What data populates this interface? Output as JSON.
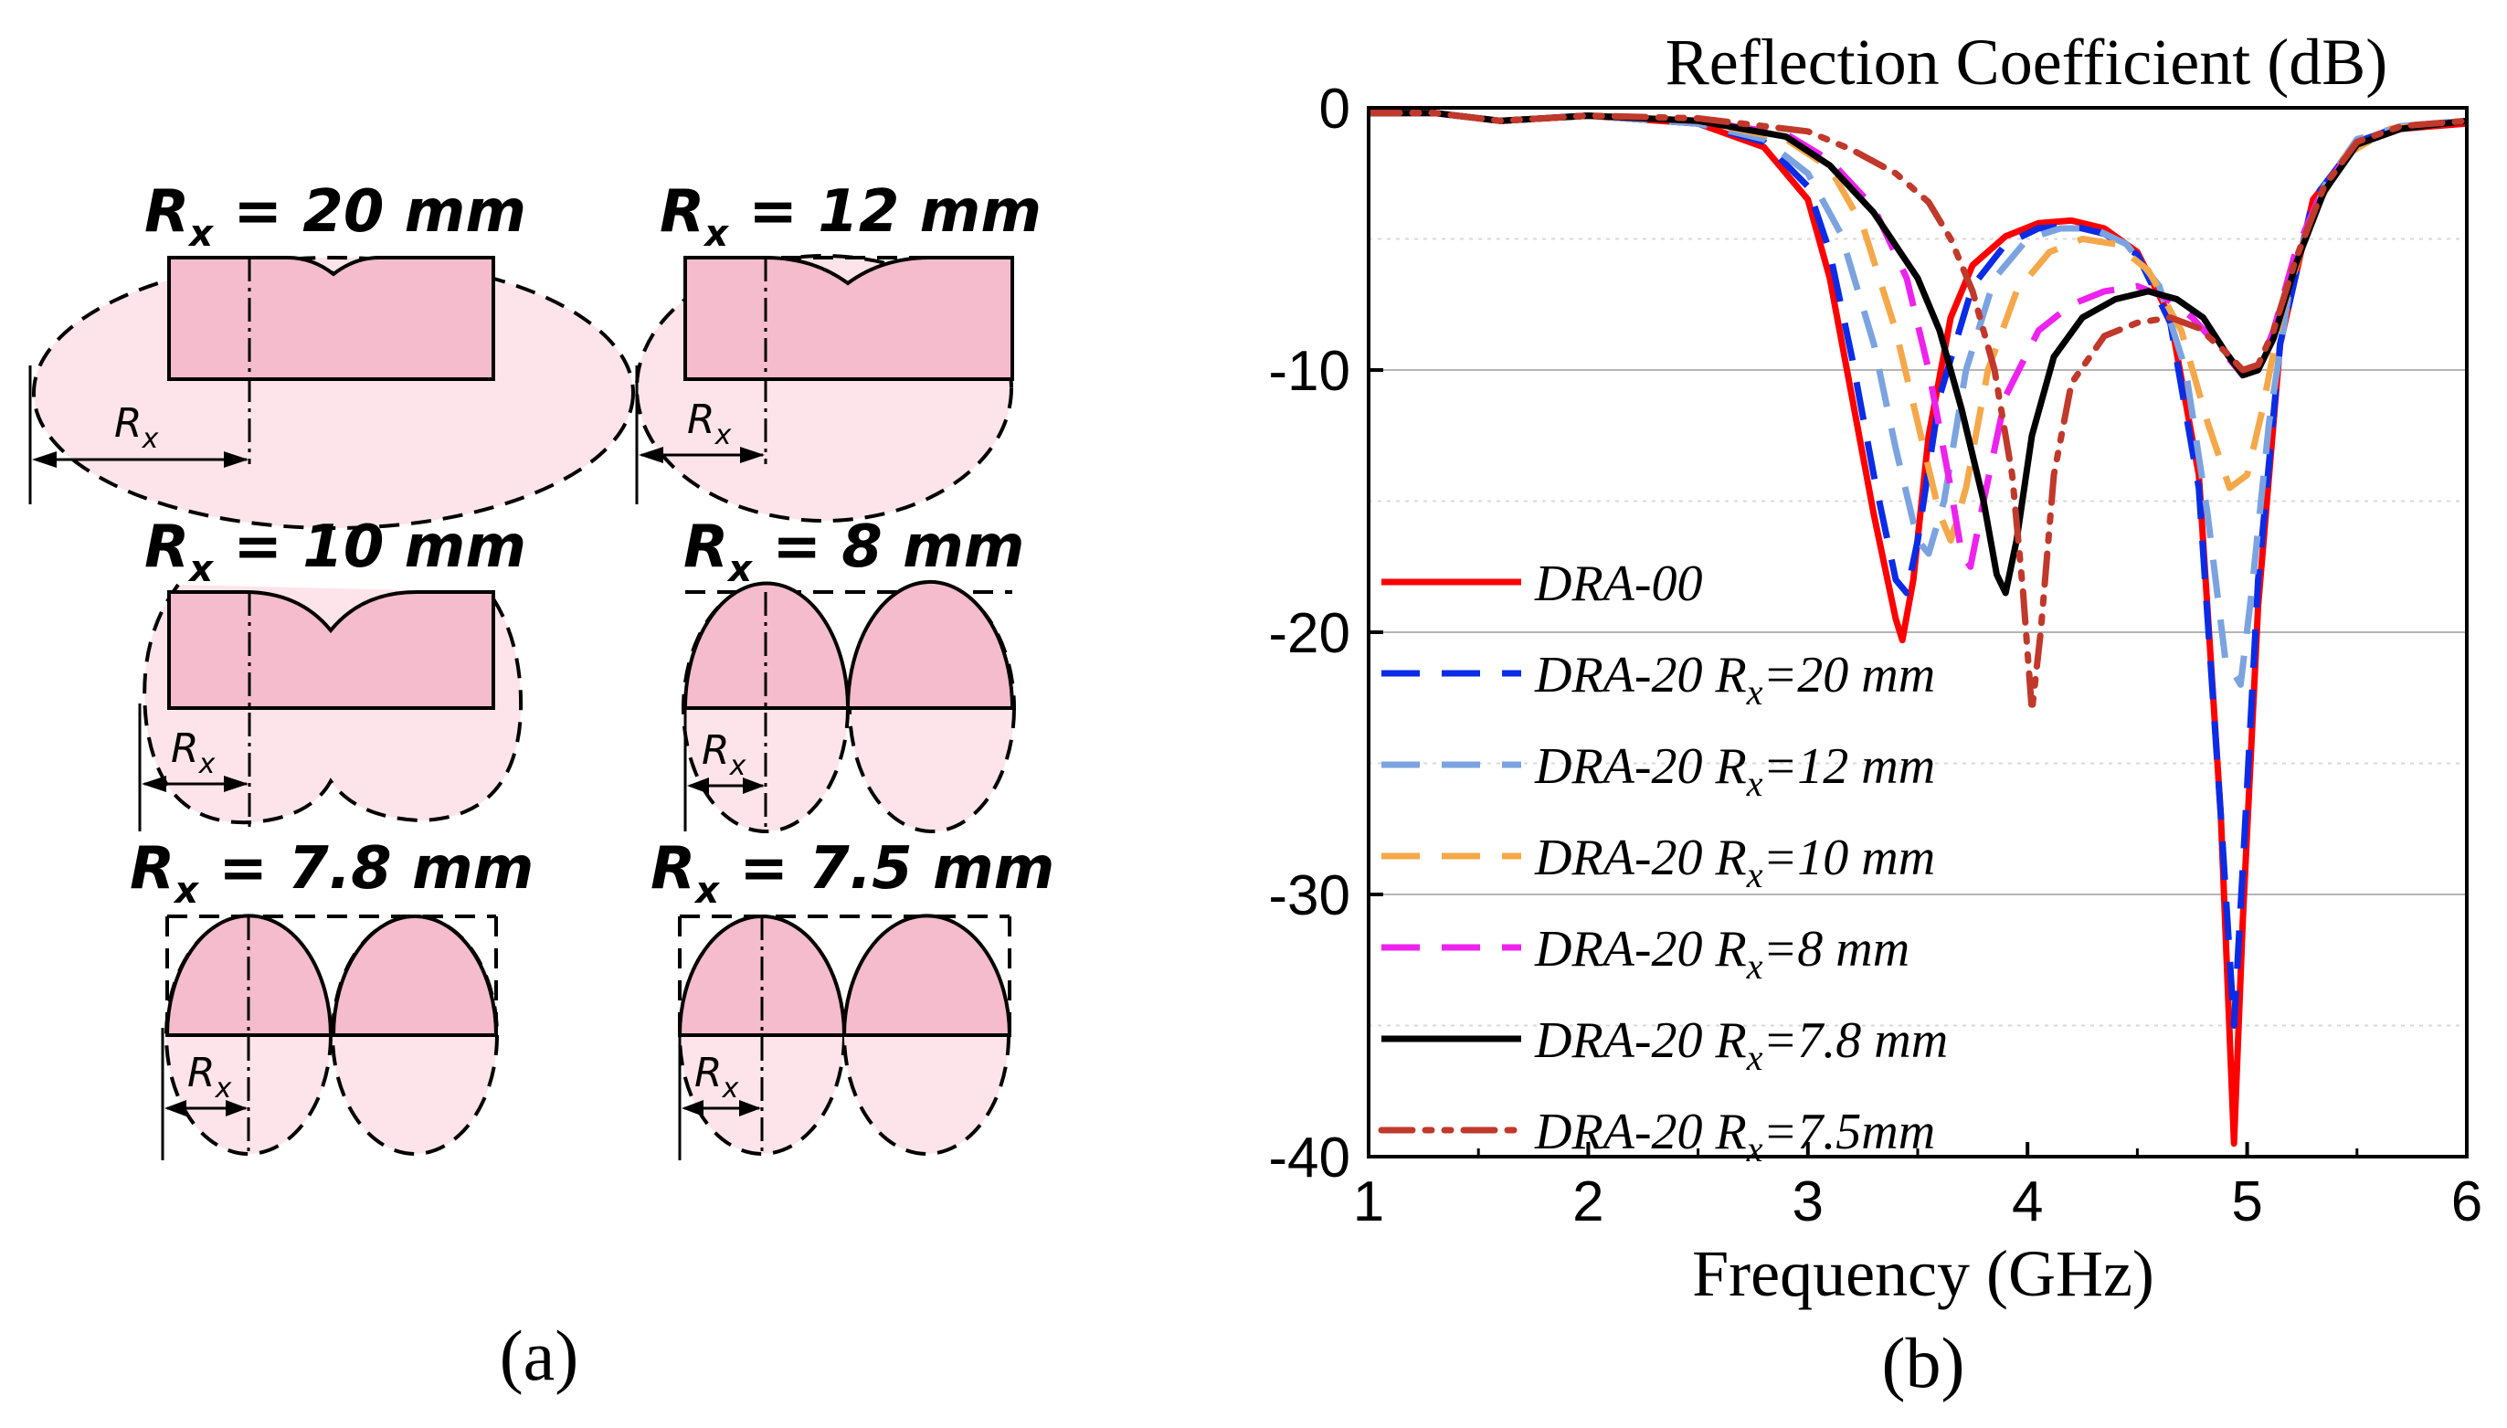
{
  "panel_a": {
    "caption": "(a)",
    "shapes": [
      {
        "title": "R",
        "sub": "x",
        "rest": " = 20 mm",
        "rx_label": "R",
        "rx_sub": "x"
      },
      {
        "title": "R",
        "sub": "x",
        "rest": " = 12 mm",
        "rx_label": "R",
        "rx_sub": "x"
      },
      {
        "title": "R",
        "sub": "x",
        "rest": " = 10 mm",
        "rx_label": "R",
        "rx_sub": "x"
      },
      {
        "title": "R",
        "sub": "x",
        "rest": " = 8 mm",
        "rx_label": "R",
        "rx_sub": "x"
      },
      {
        "title": "R",
        "sub": "x",
        "rest": " = 7.8 mm",
        "rx_label": "R",
        "rx_sub": "x"
      },
      {
        "title": "R",
        "sub": "x",
        "rest": " = 7.5 mm",
        "rx_label": "R",
        "rx_sub": "x"
      }
    ],
    "colors": {
      "fill_light": "#fde4ea",
      "fill_dark": "#f4bccc",
      "stroke": "#000000"
    }
  },
  "panel_b": {
    "caption": "(b)"
  },
  "chart_data": {
    "type": "line",
    "title": "Reflection Coefficient (dB)",
    "xlabel": "Frequency (GHz)",
    "ylabel": "",
    "xlim": [
      1,
      6
    ],
    "ylim": [
      -40,
      0
    ],
    "xticks": [
      "1",
      "2",
      "3",
      "4",
      "5",
      "6"
    ],
    "yticks": [
      "0",
      "-10",
      "-20",
      "-30",
      "-40"
    ],
    "grid": "horizontal",
    "legend_position": "left",
    "series": [
      {
        "name": "DRA-00",
        "name_main": "DRA-00",
        "name_sub": "",
        "name_tail": "",
        "color": "#ff0000",
        "dash": "solid",
        "points": [
          [
            1,
            -0.2
          ],
          [
            1.3,
            -0.2
          ],
          [
            1.6,
            -0.5
          ],
          [
            2,
            -0.3
          ],
          [
            2.5,
            -0.6
          ],
          [
            2.8,
            -1.5
          ],
          [
            3,
            -3.5
          ],
          [
            3.1,
            -6.5
          ],
          [
            3.2,
            -11
          ],
          [
            3.3,
            -15.5
          ],
          [
            3.4,
            -19.5
          ],
          [
            3.43,
            -20.3
          ],
          [
            3.48,
            -18
          ],
          [
            3.55,
            -12.5
          ],
          [
            3.65,
            -8
          ],
          [
            3.75,
            -6
          ],
          [
            3.9,
            -4.9
          ],
          [
            4.05,
            -4.4
          ],
          [
            4.2,
            -4.3
          ],
          [
            4.35,
            -4.6
          ],
          [
            4.5,
            -5.5
          ],
          [
            4.65,
            -8
          ],
          [
            4.78,
            -14
          ],
          [
            4.88,
            -27
          ],
          [
            4.94,
            -39.5
          ],
          [
            4.98,
            -31
          ],
          [
            5.05,
            -19
          ],
          [
            5.15,
            -9
          ],
          [
            5.3,
            -3.5
          ],
          [
            5.5,
            -1.4
          ],
          [
            5.7,
            -0.8
          ],
          [
            6,
            -0.6
          ]
        ]
      },
      {
        "name": "DRA-20 Rx=20 mm",
        "name_main": "DRA-20 R",
        "name_sub": "x",
        "name_tail": "=20 mm",
        "color": "#0a2ce6",
        "dash": "long-dash",
        "points": [
          [
            1,
            -0.2
          ],
          [
            1.3,
            -0.2
          ],
          [
            1.6,
            -0.5
          ],
          [
            2,
            -0.3
          ],
          [
            2.5,
            -0.6
          ],
          [
            2.8,
            -1.3
          ],
          [
            3,
            -3
          ],
          [
            3.1,
            -5.5
          ],
          [
            3.2,
            -9.5
          ],
          [
            3.3,
            -14
          ],
          [
            3.4,
            -18
          ],
          [
            3.45,
            -18.5
          ],
          [
            3.5,
            -16.5
          ],
          [
            3.6,
            -11
          ],
          [
            3.75,
            -6.8
          ],
          [
            3.9,
            -5.2
          ],
          [
            4.05,
            -4.6
          ],
          [
            4.2,
            -4.5
          ],
          [
            4.35,
            -4.8
          ],
          [
            4.5,
            -5.6
          ],
          [
            4.65,
            -8.2
          ],
          [
            4.78,
            -14.5
          ],
          [
            4.88,
            -27
          ],
          [
            4.94,
            -35
          ],
          [
            4.98,
            -29
          ],
          [
            5.05,
            -18
          ],
          [
            5.15,
            -9
          ],
          [
            5.3,
            -3.5
          ],
          [
            5.5,
            -1.3
          ],
          [
            5.7,
            -0.7
          ],
          [
            6,
            -0.5
          ]
        ]
      },
      {
        "name": "DRA-20 Rx=12 mm",
        "name_main": "DRA-20 R",
        "name_sub": "x",
        "name_tail": "=12 mm",
        "color": "#7ba3e0",
        "dash": "long-dash",
        "points": [
          [
            1,
            -0.2
          ],
          [
            1.3,
            -0.2
          ],
          [
            1.6,
            -0.5
          ],
          [
            2,
            -0.3
          ],
          [
            2.5,
            -0.6
          ],
          [
            2.8,
            -1.2
          ],
          [
            3,
            -2.5
          ],
          [
            3.15,
            -4.8
          ],
          [
            3.3,
            -9
          ],
          [
            3.4,
            -13
          ],
          [
            3.5,
            -16.5
          ],
          [
            3.55,
            -17
          ],
          [
            3.62,
            -15
          ],
          [
            3.72,
            -10
          ],
          [
            3.85,
            -6.5
          ],
          [
            4,
            -5
          ],
          [
            4.15,
            -4.6
          ],
          [
            4.3,
            -4.6
          ],
          [
            4.45,
            -5.2
          ],
          [
            4.6,
            -6.8
          ],
          [
            4.72,
            -10
          ],
          [
            4.82,
            -15.5
          ],
          [
            4.9,
            -21
          ],
          [
            4.97,
            -22
          ],
          [
            5.02,
            -18.5
          ],
          [
            5.1,
            -12
          ],
          [
            5.2,
            -6.5
          ],
          [
            5.35,
            -3
          ],
          [
            5.5,
            -1.2
          ],
          [
            5.7,
            -0.7
          ],
          [
            6,
            -0.5
          ]
        ]
      },
      {
        "name": "DRA-20 Rx=10 mm",
        "name_main": "DRA-20 R",
        "name_sub": "x",
        "name_tail": "=10 mm",
        "color": "#f5a84a",
        "dash": "long-dash",
        "points": [
          [
            1,
            -0.2
          ],
          [
            1.3,
            -0.2
          ],
          [
            1.6,
            -0.5
          ],
          [
            2,
            -0.3
          ],
          [
            2.5,
            -0.5
          ],
          [
            2.9,
            -1.2
          ],
          [
            3.1,
            -2.3
          ],
          [
            3.25,
            -4.5
          ],
          [
            3.4,
            -8.5
          ],
          [
            3.5,
            -12
          ],
          [
            3.6,
            -15.5
          ],
          [
            3.65,
            -16.5
          ],
          [
            3.72,
            -14.5
          ],
          [
            3.82,
            -10
          ],
          [
            3.95,
            -7
          ],
          [
            4.1,
            -5.5
          ],
          [
            4.25,
            -5
          ],
          [
            4.4,
            -5.2
          ],
          [
            4.55,
            -6.2
          ],
          [
            4.7,
            -8.5
          ],
          [
            4.82,
            -12
          ],
          [
            4.92,
            -14.5
          ],
          [
            5.0,
            -14
          ],
          [
            5.07,
            -11.5
          ],
          [
            5.15,
            -8
          ],
          [
            5.3,
            -4
          ],
          [
            5.45,
            -1.8
          ],
          [
            5.65,
            -0.8
          ],
          [
            6,
            -0.5
          ]
        ]
      },
      {
        "name": "DRA-20 Rx=8 mm",
        "name_main": "DRA-20 R",
        "name_sub": "x",
        "name_tail": "=8 mm",
        "color": "#ee22ee",
        "dash": "long-dash",
        "points": [
          [
            1,
            -0.2
          ],
          [
            1.3,
            -0.2
          ],
          [
            1.6,
            -0.5
          ],
          [
            2,
            -0.3
          ],
          [
            2.5,
            -0.5
          ],
          [
            2.9,
            -1
          ],
          [
            3.1,
            -2
          ],
          [
            3.3,
            -3.8
          ],
          [
            3.45,
            -6.5
          ],
          [
            3.55,
            -10
          ],
          [
            3.65,
            -14.5
          ],
          [
            3.7,
            -17
          ],
          [
            3.74,
            -17.5
          ],
          [
            3.8,
            -15
          ],
          [
            3.9,
            -11
          ],
          [
            4.05,
            -8.5
          ],
          [
            4.2,
            -7.5
          ],
          [
            4.35,
            -7
          ],
          [
            4.5,
            -6.8
          ],
          [
            4.62,
            -7.2
          ],
          [
            4.75,
            -8
          ],
          [
            4.88,
            -9.2
          ],
          [
            4.98,
            -10.2
          ],
          [
            5.05,
            -10
          ],
          [
            5.12,
            -8.5
          ],
          [
            5.22,
            -5.5
          ],
          [
            5.35,
            -3
          ],
          [
            5.5,
            -1.4
          ],
          [
            5.7,
            -0.8
          ],
          [
            6,
            -0.5
          ]
        ]
      },
      {
        "name": "DRA-20 Rx=7.8 mm",
        "name_main": "DRA-20 R",
        "name_sub": "x",
        "name_tail": "=7.8 mm",
        "color": "#000000",
        "dash": "solid",
        "points": [
          [
            1,
            -0.2
          ],
          [
            1.3,
            -0.2
          ],
          [
            1.6,
            -0.5
          ],
          [
            2,
            -0.3
          ],
          [
            2.5,
            -0.5
          ],
          [
            2.9,
            -1.1
          ],
          [
            3.1,
            -2.2
          ],
          [
            3.3,
            -4
          ],
          [
            3.5,
            -6.5
          ],
          [
            3.6,
            -8.5
          ],
          [
            3.7,
            -11.5
          ],
          [
            3.8,
            -15
          ],
          [
            3.86,
            -17.8
          ],
          [
            3.9,
            -18.5
          ],
          [
            3.95,
            -16.5
          ],
          [
            4.02,
            -12.5
          ],
          [
            4.12,
            -9.5
          ],
          [
            4.25,
            -8
          ],
          [
            4.4,
            -7.3
          ],
          [
            4.55,
            -7
          ],
          [
            4.68,
            -7.3
          ],
          [
            4.8,
            -8
          ],
          [
            4.9,
            -9.3
          ],
          [
            4.98,
            -10.2
          ],
          [
            5.05,
            -10
          ],
          [
            5.12,
            -8.8
          ],
          [
            5.22,
            -6
          ],
          [
            5.35,
            -3.2
          ],
          [
            5.5,
            -1.4
          ],
          [
            5.7,
            -0.8
          ],
          [
            6,
            -0.5
          ]
        ]
      },
      {
        "name": "DRA-20 Rx=7.5mm",
        "name_main": "DRA-20 R",
        "name_sub": "x",
        "name_tail": "=7.5mm",
        "color": "#c0392b",
        "dash": "dash-dot-dot",
        "points": [
          [
            1,
            -0.2
          ],
          [
            1.3,
            -0.2
          ],
          [
            1.6,
            -0.5
          ],
          [
            2,
            -0.3
          ],
          [
            2.5,
            -0.4
          ],
          [
            3,
            -0.9
          ],
          [
            3.2,
            -1.6
          ],
          [
            3.4,
            -2.5
          ],
          [
            3.55,
            -3.6
          ],
          [
            3.65,
            -5
          ],
          [
            3.75,
            -7
          ],
          [
            3.85,
            -10
          ],
          [
            3.93,
            -14
          ],
          [
            3.98,
            -18.5
          ],
          [
            4.02,
            -23
          ],
          [
            4.06,
            -20
          ],
          [
            4.12,
            -14
          ],
          [
            4.2,
            -10.5
          ],
          [
            4.35,
            -8.7
          ],
          [
            4.5,
            -8.2
          ],
          [
            4.65,
            -8
          ],
          [
            4.78,
            -8.4
          ],
          [
            4.9,
            -9.3
          ],
          [
            4.98,
            -10
          ],
          [
            5.05,
            -9.8
          ],
          [
            5.12,
            -8.5
          ],
          [
            5.22,
            -5.8
          ],
          [
            5.35,
            -3
          ],
          [
            5.5,
            -1.3
          ],
          [
            5.7,
            -0.7
          ],
          [
            6,
            -0.5
          ]
        ]
      }
    ]
  }
}
